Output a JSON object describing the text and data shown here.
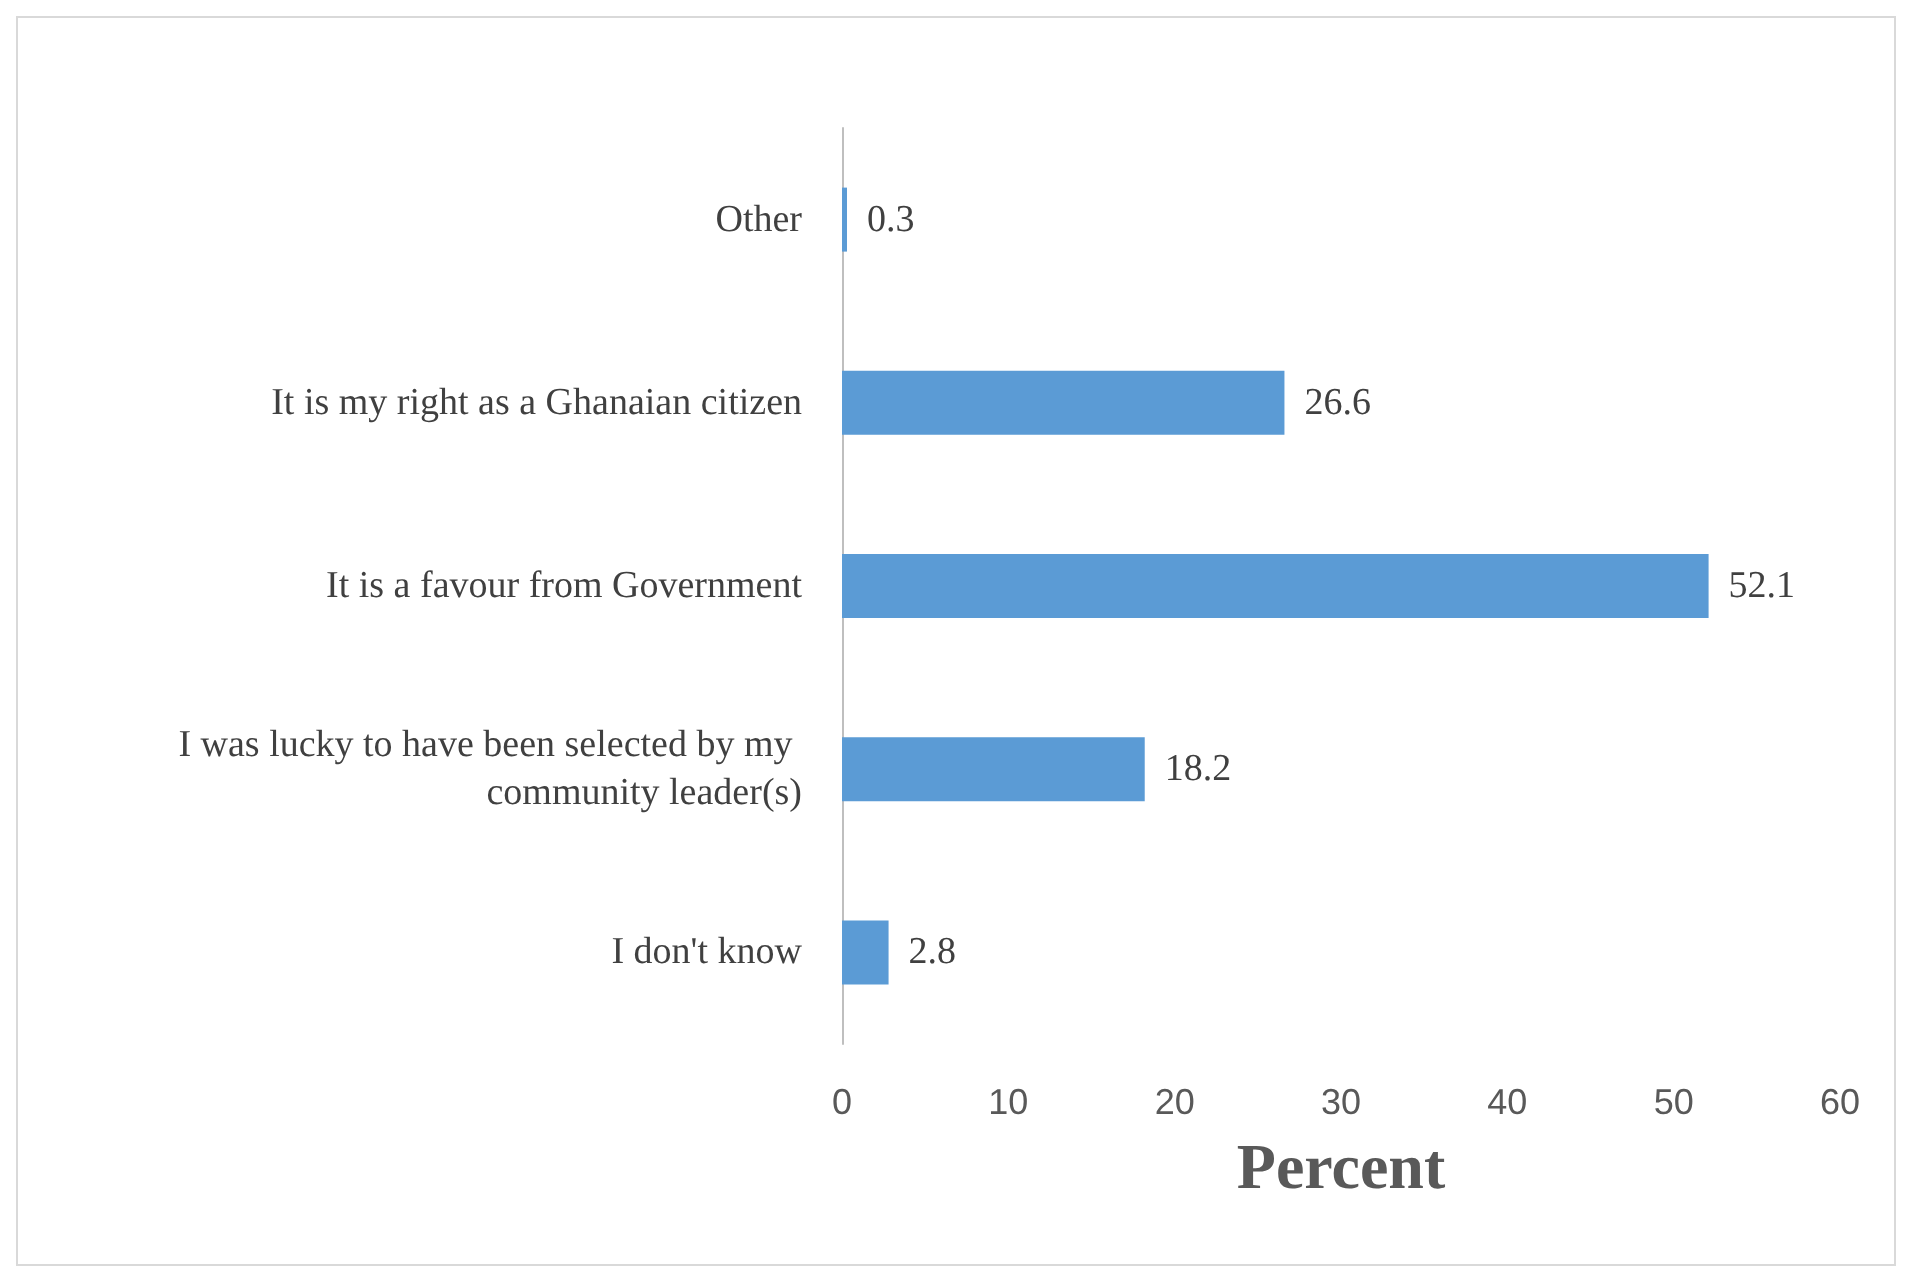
{
  "chart_data": {
    "type": "bar",
    "orientation": "horizontal",
    "xlabel": "Percent",
    "categories": [
      "Other",
      "It is my right as a Ghanaian citizen",
      "It is a favour from Government",
      "I was lucky to have been selected by my community leader(s)",
      "I don't know"
    ],
    "values": [
      0.3,
      26.6,
      52.1,
      18.2,
      2.8
    ],
    "color": "#5b9bd5",
    "xlim": [
      0,
      60
    ],
    "xticks": [
      0,
      10,
      20,
      30,
      40,
      50,
      60
    ],
    "data_labels": true,
    "grid": false
  }
}
